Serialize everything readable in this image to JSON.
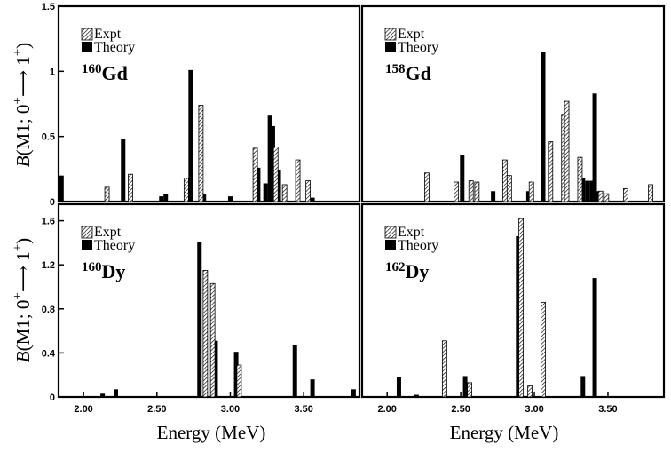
{
  "figure": {
    "xlabel": "Energy (MeV)",
    "ylabel_parts": {
      "B": "B",
      "open": "(M1; 0",
      "sup1": "+",
      "arrow": "⟶",
      "one": " 1",
      "sup2": "+",
      "close": ")"
    },
    "legend": {
      "expt": "Expt",
      "theory": "Theory"
    }
  },
  "colors": {
    "theory": "#000000",
    "expt_stroke": "#000000",
    "hatch": "#000000",
    "background": "#ffffff"
  },
  "chart_data": [
    {
      "type": "bar",
      "panel": "top-left",
      "nucleus_mass": "160",
      "nucleus_symbol": "Gd",
      "xlim": [
        1.83,
        3.88
      ],
      "ylim": [
        0,
        1.5
      ],
      "yticks": [
        "0",
        "0.5",
        "1",
        "1.5"
      ],
      "xticks": [],
      "series": [
        {
          "name": "Expt",
          "points": [
            [
              2.16,
              0.11
            ],
            [
              2.32,
              0.21
            ],
            [
              2.7,
              0.18
            ],
            [
              2.8,
              0.74
            ],
            [
              3.17,
              0.41
            ],
            [
              3.31,
              0.42
            ],
            [
              3.37,
              0.13
            ],
            [
              3.46,
              0.32
            ],
            [
              3.53,
              0.16
            ]
          ]
        },
        {
          "name": "Theory",
          "points": [
            [
              1.85,
              0.2
            ],
            [
              2.27,
              0.48
            ],
            [
              2.53,
              0.04
            ],
            [
              2.56,
              0.06
            ],
            [
              2.73,
              1.01
            ],
            [
              2.82,
              0.06
            ],
            [
              3.0,
              0.04
            ],
            [
              3.19,
              0.26
            ],
            [
              3.24,
              0.14
            ],
            [
              3.27,
              0.66
            ],
            [
              3.29,
              0.58
            ],
            [
              3.33,
              0.24
            ],
            [
              3.56,
              0.03
            ]
          ]
        }
      ]
    },
    {
      "type": "bar",
      "panel": "top-right",
      "nucleus_mass": "158",
      "nucleus_symbol": "Gd",
      "xlim": [
        1.83,
        3.88
      ],
      "ylim": [
        0,
        1.5
      ],
      "yticks": [],
      "xticks": [],
      "series": [
        {
          "name": "Expt",
          "points": [
            [
              2.27,
              0.22
            ],
            [
              2.47,
              0.15
            ],
            [
              2.57,
              0.16
            ],
            [
              2.61,
              0.15
            ],
            [
              2.8,
              0.32
            ],
            [
              2.83,
              0.2
            ],
            [
              2.98,
              0.15
            ],
            [
              3.11,
              0.46
            ],
            [
              3.2,
              0.67
            ],
            [
              3.22,
              0.77
            ],
            [
              3.31,
              0.34
            ],
            [
              3.45,
              0.08
            ],
            [
              3.49,
              0.06
            ],
            [
              3.62,
              0.1
            ],
            [
              3.79,
              0.13
            ]
          ]
        },
        {
          "name": "Theory",
          "points": [
            [
              2.51,
              0.36
            ],
            [
              2.72,
              0.08
            ],
            [
              2.96,
              0.08
            ],
            [
              3.06,
              1.15
            ],
            [
              3.33,
              0.18
            ],
            [
              3.36,
              0.16
            ],
            [
              3.39,
              0.16
            ],
            [
              3.41,
              0.83
            ],
            [
              3.42,
              0.08
            ]
          ]
        }
      ]
    },
    {
      "type": "bar",
      "panel": "bottom-left",
      "nucleus_mass": "160",
      "nucleus_symbol": "Dy",
      "xlim": [
        1.83,
        3.88
      ],
      "ylim": [
        0,
        1.75
      ],
      "yticks": [
        "0",
        "0.4",
        "0.8",
        "1.2",
        "1.6"
      ],
      "xticks": [
        "2.00",
        "2.50",
        "3.00",
        "3.50"
      ],
      "series": [
        {
          "name": "Expt",
          "points": [
            [
              2.83,
              1.15
            ],
            [
              2.88,
              1.03
            ],
            [
              3.06,
              0.29
            ]
          ]
        },
        {
          "name": "Theory",
          "points": [
            [
              2.13,
              0.03
            ],
            [
              2.22,
              0.07
            ],
            [
              2.79,
              1.41
            ],
            [
              2.9,
              0.51
            ],
            [
              3.04,
              0.41
            ],
            [
              3.44,
              0.47
            ],
            [
              3.56,
              0.16
            ],
            [
              3.84,
              0.07
            ]
          ]
        }
      ]
    },
    {
      "type": "bar",
      "panel": "bottom-right",
      "nucleus_mass": "162",
      "nucleus_symbol": "Dy",
      "xlim": [
        1.83,
        3.88
      ],
      "ylim": [
        0,
        1.75
      ],
      "yticks": [],
      "xticks": [
        "2.00",
        "2.50",
        "3.00",
        "3.50"
      ],
      "series": [
        {
          "name": "Expt",
          "points": [
            [
              2.39,
              0.51
            ],
            [
              2.56,
              0.13
            ],
            [
              2.91,
              1.62
            ],
            [
              2.97,
              0.1
            ],
            [
              3.06,
              0.86
            ]
          ]
        },
        {
          "name": "Theory",
          "points": [
            [
              2.08,
              0.18
            ],
            [
              2.2,
              0.02
            ],
            [
              2.53,
              0.19
            ],
            [
              2.89,
              1.46
            ],
            [
              3.33,
              0.19
            ],
            [
              3.41,
              1.08
            ]
          ]
        }
      ]
    }
  ]
}
